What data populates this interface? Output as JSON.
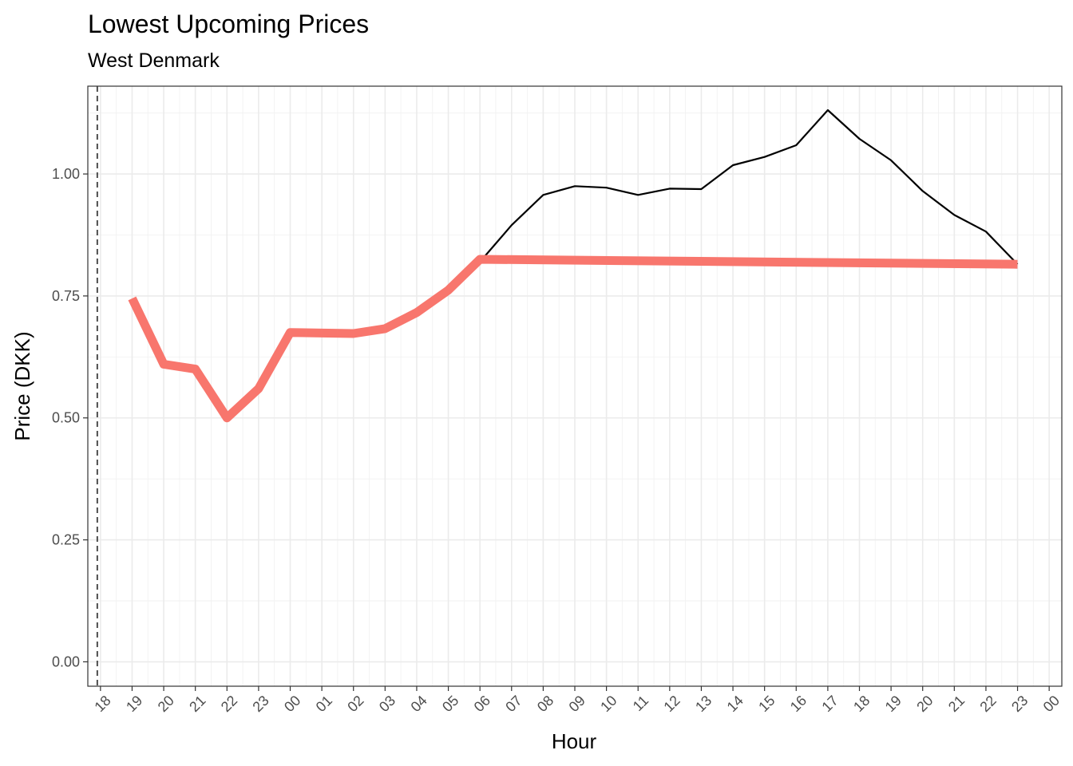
{
  "chart_data": {
    "type": "line",
    "title": "Lowest Upcoming Prices",
    "subtitle": "West Denmark",
    "xlabel": "Hour",
    "ylabel": "Price (DKK)",
    "x_tick_labels": [
      "18",
      "19",
      "20",
      "21",
      "22",
      "23",
      "00",
      "01",
      "02",
      "03",
      "04",
      "05",
      "06",
      "07",
      "08",
      "09",
      "10",
      "11",
      "12",
      "13",
      "14",
      "15",
      "16",
      "17",
      "18",
      "19",
      "20",
      "21",
      "22",
      "23",
      "00"
    ],
    "y_ticks": [
      0.0,
      0.25,
      0.5,
      0.75,
      1.0
    ],
    "y_tick_labels": [
      "0.00",
      "0.25",
      "0.50",
      "0.75",
      "1.00"
    ],
    "ylim": [
      -0.05,
      1.18
    ],
    "xlim": [
      -0.4,
      30.4
    ],
    "grid": true,
    "reference_line": {
      "x": -0.1,
      "style": "dashed",
      "color": "#4d4d4d"
    },
    "series": [
      {
        "color": "#000000",
        "x": [
          12,
          13,
          14,
          15,
          16,
          17,
          18,
          19,
          20,
          21,
          22,
          23,
          24,
          25,
          26,
          27,
          28,
          29
        ],
        "values": [
          0.82,
          0.895,
          0.957,
          0.975,
          0.972,
          0.957,
          0.97,
          0.969,
          1.018,
          1.035,
          1.059,
          1.131,
          1.072,
          1.028,
          0.965,
          0.916,
          0.882,
          0.815
        ]
      },
      {
        "color": "#F8766D",
        "x": [
          1,
          2,
          3,
          4,
          5,
          6,
          7,
          8,
          9,
          10,
          11,
          12,
          29
        ],
        "values": [
          0.745,
          0.61,
          0.6,
          0.5,
          0.56,
          0.675,
          0.674,
          0.673,
          0.683,
          0.716,
          0.762,
          0.825,
          0.815
        ]
      }
    ]
  }
}
